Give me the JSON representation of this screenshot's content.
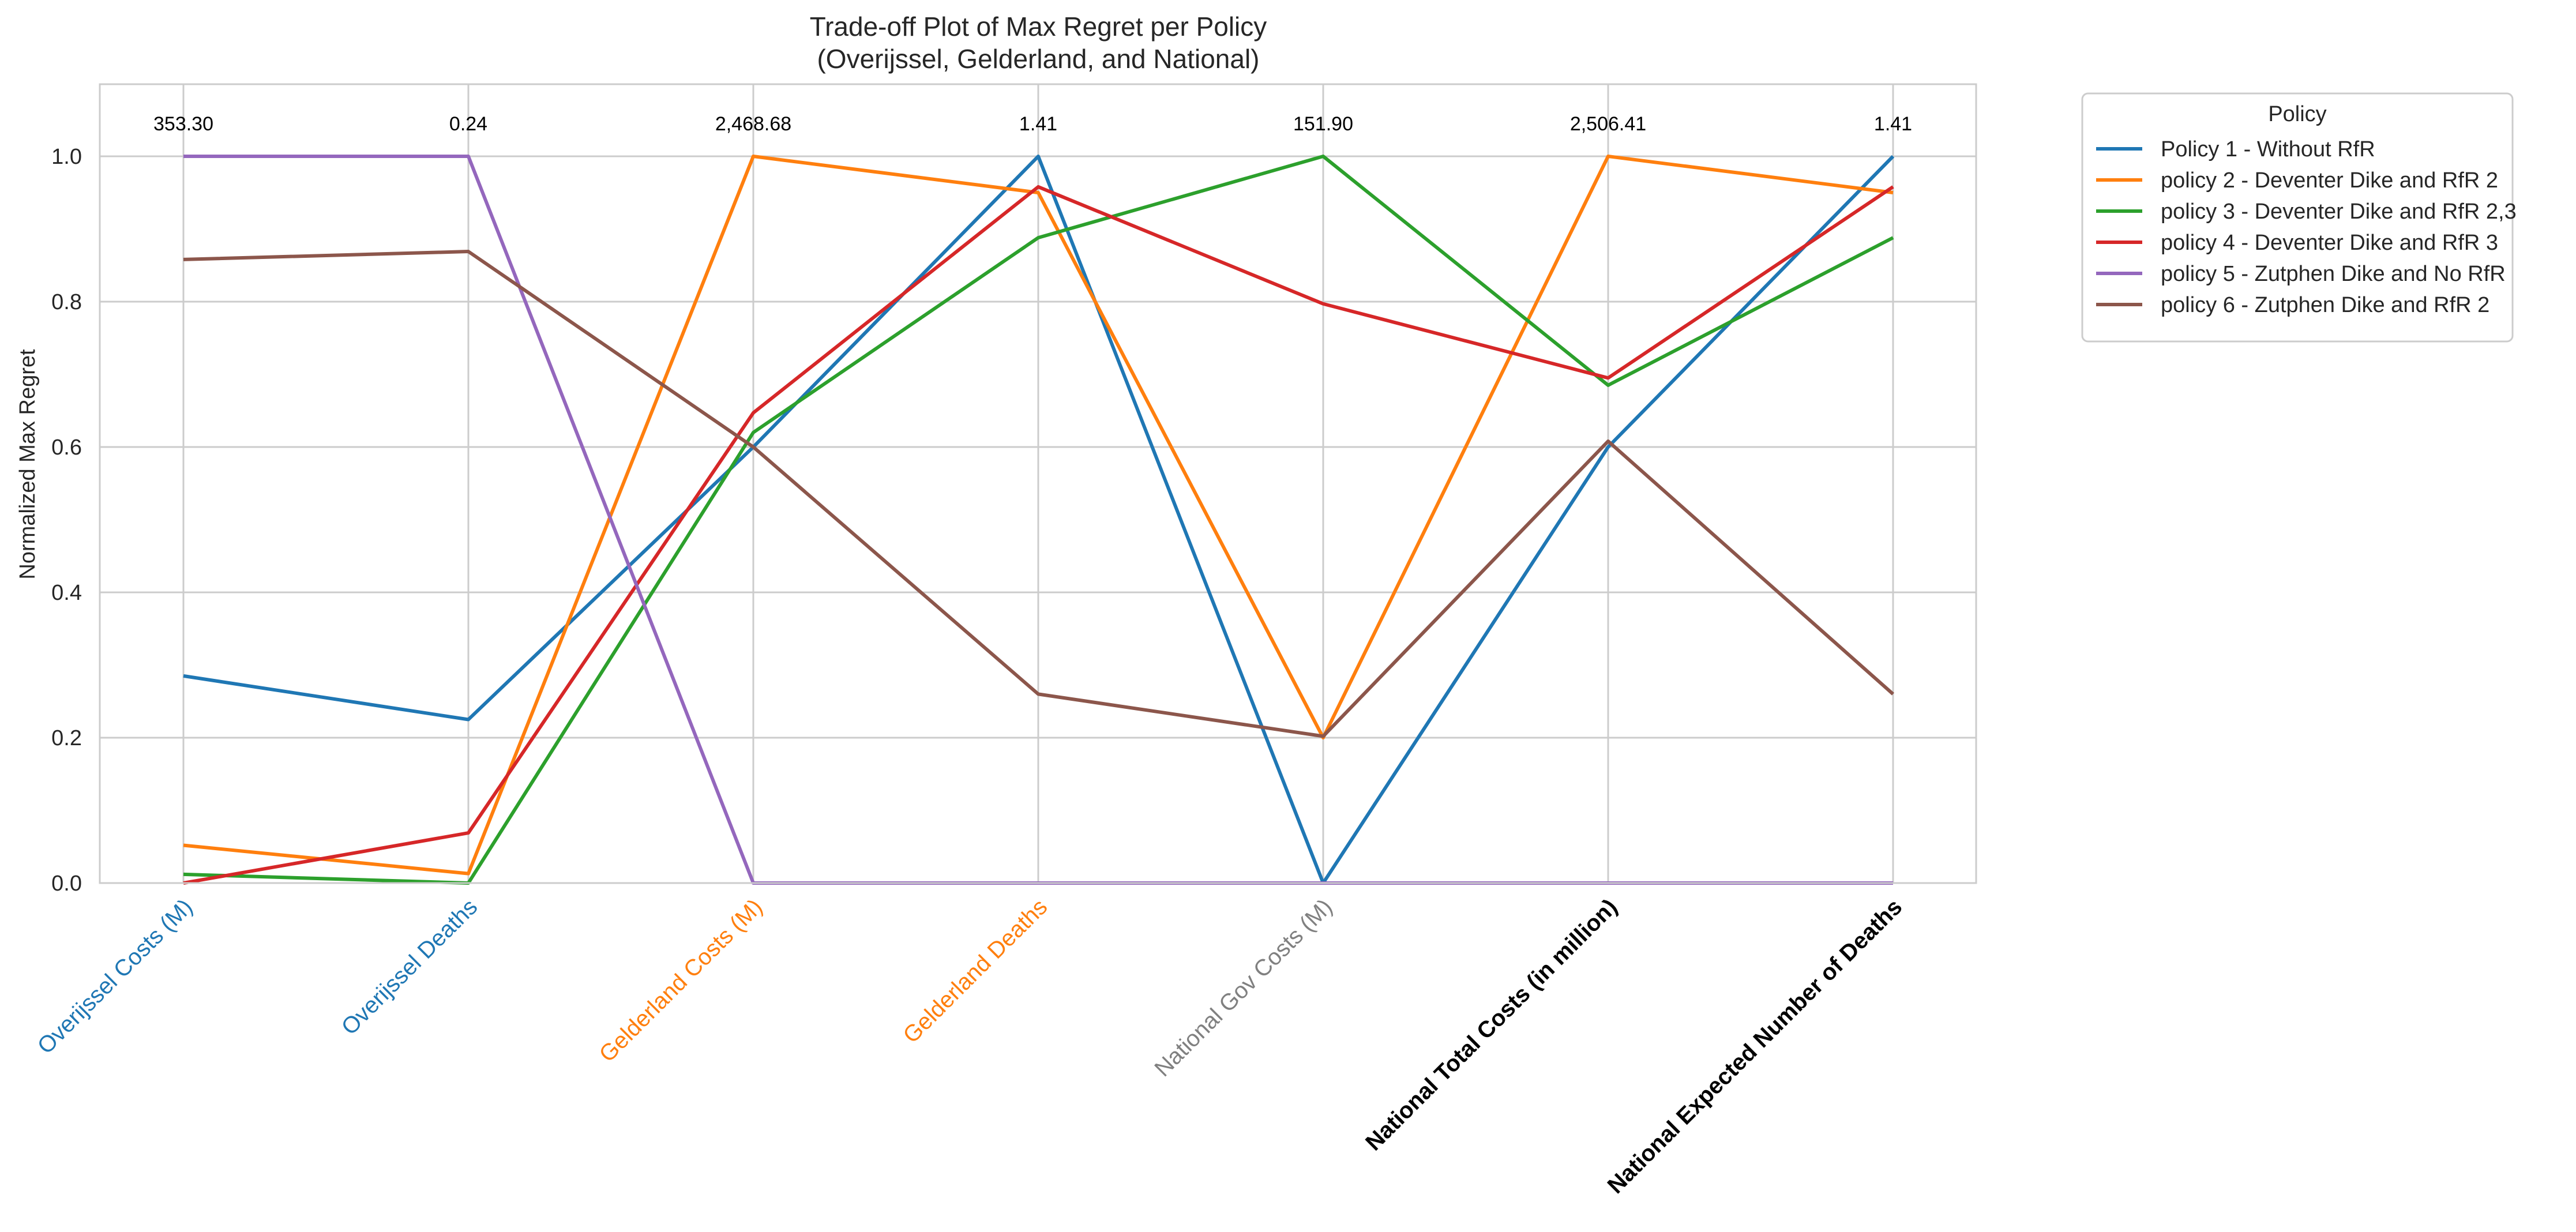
{
  "chart_data": {
    "type": "line",
    "title": "Trade-off Plot of Max Regret per Policy",
    "subtitle": "(Overijssel, Gelderland, and National)",
    "ylabel": "Normalized Max Regret",
    "xlabel": "",
    "ylim": [
      0,
      1.1
    ],
    "yticks": [
      "0.0",
      "0.2",
      "0.4",
      "0.6",
      "0.8",
      "1.0"
    ],
    "grid": true,
    "legend": {
      "title": "Policy",
      "placement": "outside-top-right"
    },
    "categories": [
      "Overijssel Costs (M)",
      "Overijssel Deaths",
      "Gelderland Costs (M)",
      "Gelderland Deaths",
      "National Gov Costs (M)",
      "National Total Costs (in million)",
      "National Expected Number of Deaths"
    ],
    "category_colors": [
      "#1f77b4",
      "#1f77b4",
      "#ff7f0e",
      "#ff7f0e",
      "#808080",
      "#000000",
      "#000000"
    ],
    "category_bold": [
      false,
      false,
      false,
      false,
      false,
      true,
      true
    ],
    "max_values": [
      "353.30",
      "0.24",
      "2,468.68",
      "1.41",
      "151.90",
      "2,506.41",
      "1.41"
    ],
    "series": [
      {
        "name": "Policy 1 - Without RfR",
        "color": "#1f77b4",
        "values": [
          0.285,
          0.225,
          0.6,
          1.0,
          0.0,
          0.6,
          1.0
        ]
      },
      {
        "name": "policy 2 - Deventer Dike and RfR 2",
        "color": "#ff7f0e",
        "values": [
          0.052,
          0.013,
          1.0,
          0.95,
          0.2,
          1.0,
          0.95
        ]
      },
      {
        "name": "policy 3 - Deventer Dike and RfR 2,3",
        "color": "#2ca02c",
        "values": [
          0.012,
          0.0,
          0.62,
          0.888,
          1.0,
          0.685,
          0.888
        ]
      },
      {
        "name": "policy 4 - Deventer Dike and RfR 3",
        "color": "#d62728",
        "values": [
          0.0,
          0.069,
          0.647,
          0.958,
          0.797,
          0.695,
          0.958
        ]
      },
      {
        "name": "policy 5 - Zutphen Dike and No RfR",
        "color": "#9467bd",
        "values": [
          1.0,
          1.0,
          0.0,
          0.0,
          0.0,
          0.0,
          0.0
        ]
      },
      {
        "name": "policy 6 - Zutphen Dike and RfR 2",
        "color": "#8c564b",
        "values": [
          0.858,
          0.869,
          0.6,
          0.26,
          0.202,
          0.608,
          0.26
        ]
      }
    ]
  }
}
